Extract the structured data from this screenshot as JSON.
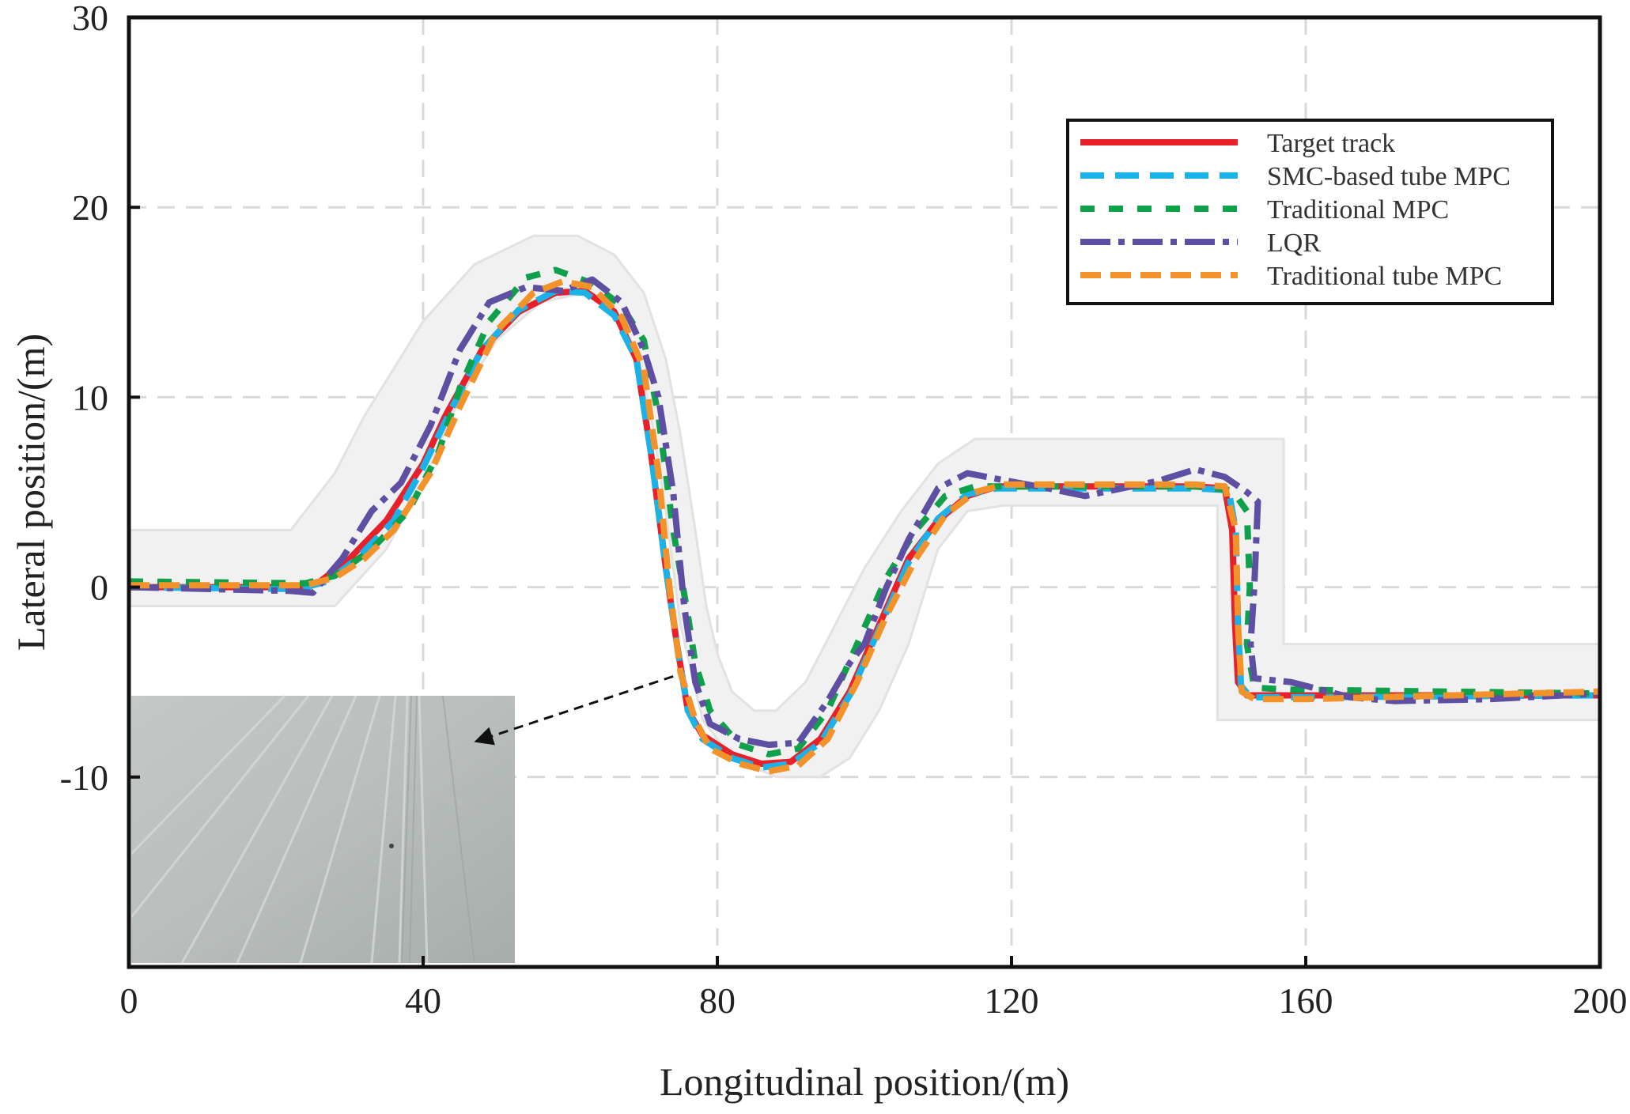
{
  "chart_data": {
    "type": "line",
    "title": "",
    "xlabel": "Longitudinal position/(m)",
    "ylabel": "Lateral position/(m)",
    "xlim": [
      0,
      200
    ],
    "ylim": [
      -20,
      30
    ],
    "xticks": [
      0,
      40,
      80,
      120,
      160,
      200
    ],
    "yticks": [
      -10,
      0,
      10,
      20,
      30
    ],
    "grid": true,
    "legend_position": "top-right",
    "road_boundary": {
      "upper": [
        [
          0,
          3
        ],
        [
          22,
          3
        ],
        [
          28,
          6
        ],
        [
          32,
          9
        ],
        [
          40,
          14
        ],
        [
          47,
          17
        ],
        [
          55,
          18.5
        ],
        [
          61,
          18.5
        ],
        [
          66,
          17.5
        ],
        [
          70,
          15.5
        ],
        [
          73,
          12
        ],
        [
          75,
          8
        ],
        [
          77,
          3
        ],
        [
          78.5,
          -1
        ],
        [
          80,
          -3.5
        ],
        [
          82,
          -5.5
        ],
        [
          85,
          -6.5
        ],
        [
          88,
          -6.5
        ],
        [
          92,
          -5
        ],
        [
          96,
          -2
        ],
        [
          100,
          1
        ],
        [
          105,
          4
        ],
        [
          110,
          6.5
        ],
        [
          115,
          7.8
        ],
        [
          120,
          7.8
        ],
        [
          157,
          7.8
        ],
        [
          157,
          -3
        ],
        [
          200,
          -3
        ]
      ],
      "lower": [
        [
          200,
          -7
        ],
        [
          148,
          -7
        ],
        [
          148,
          4
        ],
        [
          148,
          4.3
        ],
        [
          119,
          4.3
        ],
        [
          114,
          4
        ],
        [
          110,
          2
        ],
        [
          106,
          -3
        ],
        [
          102,
          -6.5
        ],
        [
          98,
          -9
        ],
        [
          94,
          -10
        ],
        [
          88,
          -10
        ],
        [
          82,
          -9
        ],
        [
          78,
          -7
        ],
        [
          75,
          -2
        ],
        [
          73,
          4
        ],
        [
          71,
          9
        ],
        [
          69,
          12.5
        ],
        [
          66,
          14.5
        ],
        [
          62,
          15.5
        ],
        [
          56,
          15
        ],
        [
          50,
          13
        ],
        [
          45,
          10
        ],
        [
          40,
          5.5
        ],
        [
          35,
          2
        ],
        [
          28,
          -1
        ],
        [
          0,
          -1
        ]
      ]
    },
    "series": [
      {
        "name": "Target track",
        "color": "#e8202a",
        "dash": "solid",
        "points": [
          [
            0,
            0
          ],
          [
            23,
            0
          ],
          [
            26,
            0.3
          ],
          [
            30,
            1.5
          ],
          [
            35,
            3.5
          ],
          [
            40,
            6.5
          ],
          [
            43,
            9
          ],
          [
            48,
            12.5
          ],
          [
            53,
            14.5
          ],
          [
            58,
            15.5
          ],
          [
            62,
            15.6
          ],
          [
            66,
            14.5
          ],
          [
            69,
            12
          ],
          [
            71,
            7
          ],
          [
            73,
            1
          ],
          [
            74.5,
            -3
          ],
          [
            76,
            -6.5
          ],
          [
            78,
            -7.8
          ],
          [
            82,
            -8.8
          ],
          [
            86,
            -9.3
          ],
          [
            90,
            -9.2
          ],
          [
            94,
            -8
          ],
          [
            98,
            -5.5
          ],
          [
            102,
            -2
          ],
          [
            106,
            1.5
          ],
          [
            110,
            3.5
          ],
          [
            114,
            4.8
          ],
          [
            118,
            5.3
          ],
          [
            130,
            5.3
          ],
          [
            145,
            5.3
          ],
          [
            149,
            5.2
          ],
          [
            150,
            3
          ],
          [
            150.4,
            -2
          ],
          [
            150.8,
            -5
          ],
          [
            152,
            -5.7
          ],
          [
            160,
            -5.7
          ],
          [
            200,
            -5.7
          ]
        ]
      },
      {
        "name": "SMC-based tube MPC",
        "color": "#1ab2e8",
        "dash": "30 14",
        "points": [
          [
            0,
            0
          ],
          [
            23,
            -0.1
          ],
          [
            27,
            0.3
          ],
          [
            31,
            1.5
          ],
          [
            36,
            3.5
          ],
          [
            40,
            6.3
          ],
          [
            44,
            9.5
          ],
          [
            48,
            12.5
          ],
          [
            53,
            14.6
          ],
          [
            58,
            15.6
          ],
          [
            62,
            15.5
          ],
          [
            66,
            14.3
          ],
          [
            69,
            12
          ],
          [
            71,
            7
          ],
          [
            73,
            1
          ],
          [
            74.5,
            -3
          ],
          [
            76,
            -6.5
          ],
          [
            78,
            -8
          ],
          [
            82,
            -9
          ],
          [
            86,
            -9.5
          ],
          [
            90,
            -9.3
          ],
          [
            94,
            -8.2
          ],
          [
            98,
            -5.7
          ],
          [
            102,
            -2.2
          ],
          [
            106,
            1.3
          ],
          [
            110,
            3.6
          ],
          [
            114,
            4.9
          ],
          [
            118,
            5.2
          ],
          [
            130,
            5.2
          ],
          [
            145,
            5.2
          ],
          [
            149.5,
            5.1
          ],
          [
            150.5,
            3
          ],
          [
            150.8,
            -2
          ],
          [
            151.2,
            -5.2
          ],
          [
            152.5,
            -5.8
          ],
          [
            160,
            -5.8
          ],
          [
            200,
            -5.7
          ]
        ]
      },
      {
        "name": "Traditional MPC",
        "color": "#0ea04a",
        "dash": "18 18",
        "points": [
          [
            0,
            0.3
          ],
          [
            24,
            0.2
          ],
          [
            28,
            0.6
          ],
          [
            33,
            2
          ],
          [
            38,
            4
          ],
          [
            42,
            7
          ],
          [
            45,
            10.5
          ],
          [
            49,
            14
          ],
          [
            54,
            16.3
          ],
          [
            58,
            16.7
          ],
          [
            63,
            16
          ],
          [
            67,
            14.8
          ],
          [
            70,
            13
          ],
          [
            72,
            9
          ],
          [
            74,
            3
          ],
          [
            76,
            -1.5
          ],
          [
            77,
            -4
          ],
          [
            79,
            -6.5
          ],
          [
            83,
            -8.3
          ],
          [
            87,
            -8.8
          ],
          [
            91,
            -8.5
          ],
          [
            95,
            -6.5
          ],
          [
            99,
            -3
          ],
          [
            103,
            0.5
          ],
          [
            107,
            3
          ],
          [
            111,
            4.8
          ],
          [
            115,
            5.3
          ],
          [
            130,
            5.3
          ],
          [
            145,
            5.3
          ],
          [
            150,
            5.1
          ],
          [
            152,
            4
          ],
          [
            152.4,
            0
          ],
          [
            152,
            -3
          ],
          [
            153,
            -5.3
          ],
          [
            158,
            -5.4
          ],
          [
            200,
            -5.6
          ]
        ]
      },
      {
        "name": "LQR",
        "color": "#5e4fa2",
        "dash": "38 10 8 10",
        "points": [
          [
            0,
            0
          ],
          [
            22,
            -0.2
          ],
          [
            25,
            -0.3
          ],
          [
            29,
            1.5
          ],
          [
            33,
            4
          ],
          [
            37,
            5.5
          ],
          [
            41,
            8.5
          ],
          [
            45,
            12.5
          ],
          [
            49,
            15
          ],
          [
            54,
            15.8
          ],
          [
            59,
            15.6
          ],
          [
            63,
            16.2
          ],
          [
            67,
            15
          ],
          [
            70,
            12.5
          ],
          [
            72,
            10
          ],
          [
            74,
            5
          ],
          [
            75.5,
            -1
          ],
          [
            77,
            -5
          ],
          [
            79,
            -7.2
          ],
          [
            83,
            -8
          ],
          [
            87,
            -8.3
          ],
          [
            91,
            -8.2
          ],
          [
            95,
            -6
          ],
          [
            98,
            -4
          ],
          [
            100,
            -3
          ],
          [
            103,
            0
          ],
          [
            106,
            2.5
          ],
          [
            110,
            5.2
          ],
          [
            114,
            6
          ],
          [
            118,
            5.7
          ],
          [
            125,
            5.2
          ],
          [
            130,
            4.8
          ],
          [
            140,
            5.6
          ],
          [
            145,
            6.2
          ],
          [
            149,
            5.8
          ],
          [
            152,
            5
          ],
          [
            153.5,
            4.5
          ],
          [
            153,
            0
          ],
          [
            152.5,
            -3
          ],
          [
            153,
            -4.8
          ],
          [
            158,
            -5
          ],
          [
            162,
            -5.4
          ],
          [
            166,
            -5.8
          ],
          [
            172,
            -6
          ],
          [
            185,
            -5.9
          ],
          [
            200,
            -5.6
          ]
        ]
      },
      {
        "name": "Traditional tube MPC",
        "color": "#f2922a",
        "dash": "26 12",
        "points": [
          [
            0,
            0.1
          ],
          [
            24,
            0.1
          ],
          [
            28,
            0.5
          ],
          [
            32,
            1.5
          ],
          [
            36,
            3
          ],
          [
            41,
            6
          ],
          [
            45,
            9.5
          ],
          [
            50,
            13.5
          ],
          [
            55,
            15.5
          ],
          [
            59,
            16.1
          ],
          [
            63,
            15.8
          ],
          [
            67,
            14.2
          ],
          [
            70,
            11.5
          ],
          [
            72,
            6
          ],
          [
            73.5,
            0
          ],
          [
            75,
            -4.5
          ],
          [
            77,
            -7
          ],
          [
            79,
            -8.5
          ],
          [
            83,
            -9.3
          ],
          [
            87,
            -9.7
          ],
          [
            91,
            -9.4
          ],
          [
            95,
            -8
          ],
          [
            99,
            -5
          ],
          [
            103,
            -1.5
          ],
          [
            107,
            1.5
          ],
          [
            111,
            3.8
          ],
          [
            115,
            5
          ],
          [
            119,
            5.4
          ],
          [
            130,
            5.4
          ],
          [
            145,
            5.4
          ],
          [
            149,
            5.3
          ],
          [
            150.5,
            3
          ],
          [
            150.8,
            -2
          ],
          [
            151.3,
            -5.5
          ],
          [
            153,
            -5.9
          ],
          [
            160,
            -5.9
          ],
          [
            200,
            -5.5
          ]
        ]
      }
    ],
    "annotation": "arrow pointing from track at x≈74 to inset photo of snow-covered road",
    "inset_photo": "snow-covered road surface"
  }
}
